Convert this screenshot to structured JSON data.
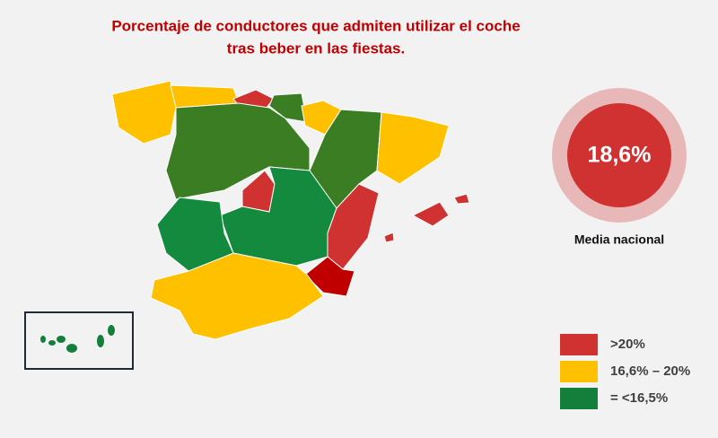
{
  "title": [
    "Porcentaje de conductores que admiten utilizar el coche",
    "tras beber en las fiestas."
  ],
  "national_average": {
    "value": "18,6%",
    "label": "Media nacional"
  },
  "legend": [
    {
      "label": ">20%",
      "color": "#d03232"
    },
    {
      "label": "16,6% – 20%",
      "color": "#ffc000"
    },
    {
      "label": "= <16,5%",
      "color": "#137f3b"
    }
  ]
}
